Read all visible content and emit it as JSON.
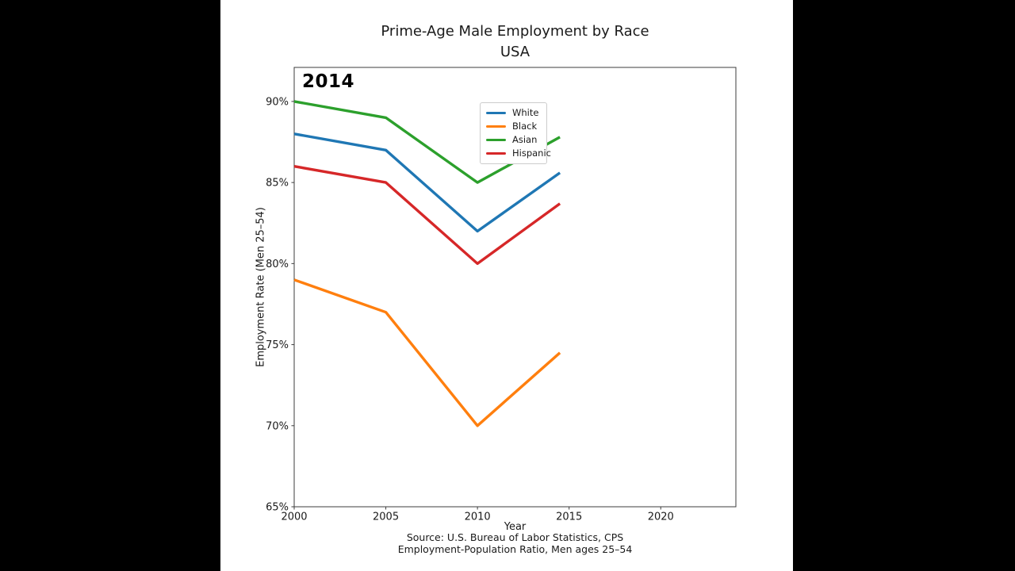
{
  "window": {
    "letterbox_color": "#000000",
    "stage_background": "#ffffff"
  },
  "title": {
    "line1": "Prime-Age Male Employment by Race",
    "line2": "USA"
  },
  "footer": {
    "source_line1": "Source: U.S. Bureau of Labor Statistics, CPS",
    "source_line2": "Employment-Population Ratio, Men ages 25–54"
  },
  "chart_data": {
    "type": "line",
    "title": "Prime-Age Male Employment by Race",
    "subtitle": "USA",
    "annotation": "2014",
    "xlabel": "Year",
    "ylabel": "Employment Rate (Men 25–54)",
    "xlim": [
      2000,
      2024.1
    ],
    "ylim": [
      65,
      92.1
    ],
    "xticks": [
      2000,
      2005,
      2010,
      2015,
      2020
    ],
    "yticks": [
      65,
      70,
      75,
      80,
      85,
      90
    ],
    "ytick_suffix": "%",
    "grid": false,
    "axis_color": "#3c3c3c",
    "line_width": 3.4,
    "legend_position": "upper-center-left-inside",
    "x": [
      2000,
      2005,
      2010,
      2014.5
    ],
    "series": [
      {
        "name": "White",
        "color": "#1f77b4",
        "values": [
          88.0,
          87.0,
          82.0,
          85.6
        ]
      },
      {
        "name": "Black",
        "color": "#ff7f0e",
        "values": [
          79.0,
          77.0,
          70.0,
          74.5
        ]
      },
      {
        "name": "Asian",
        "color": "#2ca02c",
        "values": [
          90.0,
          89.0,
          85.0,
          87.8
        ]
      },
      {
        "name": "Hispanic",
        "color": "#d62728",
        "values": [
          86.0,
          85.0,
          80.0,
          83.7
        ]
      }
    ]
  }
}
